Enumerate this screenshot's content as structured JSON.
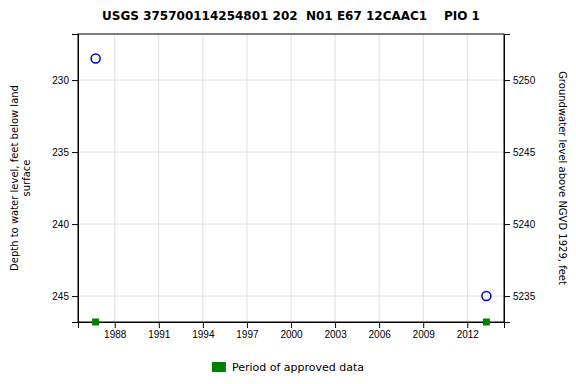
{
  "chart_data": {
    "type": "scatter",
    "title": "USGS 375700114254801 202  N01 E67 12CAAC1    PIO 1",
    "x": [
      1986.7,
      2013.3
    ],
    "series": [
      {
        "values": [
          228.5,
          245.0
        ],
        "color": "#0000cc",
        "marker": "circle"
      },
      {
        "name": "Period of approved data",
        "values": [
          246.8,
          246.8
        ],
        "color": "#008000",
        "marker": "square"
      }
    ],
    "xlim": [
      1985.5,
      2014.5
    ],
    "xticks": [
      1988,
      1991,
      1994,
      1997,
      2000,
      2003,
      2006,
      2009,
      2012
    ],
    "ylim": [
      246.8,
      226.8
    ],
    "yticks": [
      230,
      235,
      240,
      245
    ],
    "y2lim": [
      5233.2,
      5253.2
    ],
    "y2ticks": [
      5235,
      5240,
      5245,
      5250
    ],
    "ylabel": "Depth to water level, feet below land\nsurface",
    "y2label": "Groundwater level above NGVD 1929, feet",
    "grid": true,
    "legend": "bottom"
  }
}
